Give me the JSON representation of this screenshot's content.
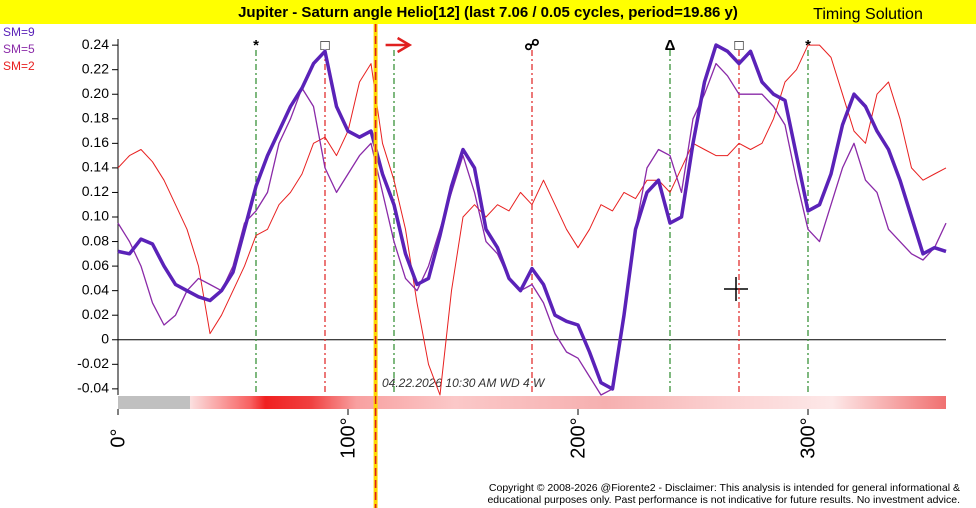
{
  "chart_data": {
    "type": "line",
    "title": "Jupiter - Saturn angle Helio[12]  (last 7.06 / 0.05 cycles, period=19.86 y)",
    "brand": "Timing Solution",
    "annotation": "04.22.2026  10:30 AM WD  4 W",
    "copyright": [
      "Copyright © 2008-2026 @Fiorente2 - Disclaimer: This analysis is intended for general informational &",
      "educational purposes only. Past performance is not indicative for future results. No investment advice."
    ],
    "xlim": [
      0,
      360
    ],
    "ylim": [
      -0.045,
      0.245
    ],
    "xticks": [
      {
        "value": 0,
        "label": "0°"
      },
      {
        "value": 100,
        "label": "100°"
      },
      {
        "value": 200,
        "label": "200°"
      },
      {
        "value": 300,
        "label": "300°"
      }
    ],
    "yticks": [
      -0.04,
      -0.02,
      0,
      0.02,
      0.04,
      0.06,
      0.08,
      {
        "value": 0.1,
        "label": "0.10"
      },
      0.12,
      0.14,
      0.16,
      0.18,
      {
        "value": 0.2,
        "label": "0.20"
      },
      0.22,
      0.24
    ],
    "cursor_x": 112,
    "aspects": [
      {
        "x": 60,
        "symbol": "*",
        "color": "#2a8a2a"
      },
      {
        "x": 90,
        "symbol": "□",
        "color": "#e02020"
      },
      {
        "x": 120,
        "symbol": null,
        "color": "#2a8a2a"
      },
      {
        "x": 180,
        "symbol": "☍",
        "color": "#e02020"
      },
      {
        "x": 240,
        "symbol": "Δ",
        "color": "#2a8a2a"
      },
      {
        "x": 270,
        "symbol": "□",
        "color": "#e02020"
      },
      {
        "x": 300,
        "symbol": "*",
        "color": "#2a8a2a"
      }
    ],
    "x": [
      0,
      5,
      10,
      15,
      20,
      25,
      30,
      35,
      40,
      45,
      50,
      55,
      60,
      65,
      70,
      75,
      80,
      85,
      90,
      95,
      100,
      105,
      110,
      115,
      120,
      125,
      130,
      135,
      140,
      145,
      150,
      155,
      160,
      165,
      170,
      175,
      180,
      185,
      190,
      195,
      200,
      205,
      210,
      215,
      220,
      225,
      230,
      235,
      240,
      245,
      250,
      255,
      260,
      265,
      270,
      275,
      280,
      285,
      290,
      295,
      300,
      305,
      310,
      315,
      320,
      325,
      330,
      335,
      340,
      345,
      350,
      355,
      360
    ],
    "series": [
      {
        "name": "SM=2",
        "color": "#e82020",
        "width": 1,
        "values": [
          0.14,
          0.15,
          0.155,
          0.145,
          0.13,
          0.11,
          0.09,
          0.06,
          0.005,
          0.02,
          0.04,
          0.06,
          0.085,
          0.09,
          0.11,
          0.12,
          0.135,
          0.16,
          0.165,
          0.15,
          0.17,
          0.21,
          0.225,
          0.16,
          0.13,
          0.09,
          0.03,
          -0.02,
          -0.045,
          0.04,
          0.1,
          0.11,
          0.1,
          0.11,
          0.105,
          0.12,
          0.11,
          0.13,
          0.11,
          0.09,
          0.075,
          0.09,
          0.11,
          0.105,
          0.12,
          0.115,
          0.13,
          0.13,
          0.12,
          0.14,
          0.16,
          0.155,
          0.15,
          0.15,
          0.16,
          0.155,
          0.16,
          0.18,
          0.21,
          0.22,
          0.24,
          0.24,
          0.23,
          0.2,
          0.17,
          0.16,
          0.2,
          0.21,
          0.18,
          0.14,
          0.13,
          0.135,
          0.14
        ]
      },
      {
        "name": "SM=5",
        "color": "#8a2aa8",
        "width": 1.3,
        "values": [
          0.095,
          0.08,
          0.06,
          0.03,
          0.012,
          0.02,
          0.04,
          0.05,
          0.045,
          0.04,
          0.06,
          0.095,
          0.105,
          0.12,
          0.16,
          0.18,
          0.205,
          0.19,
          0.14,
          0.12,
          0.135,
          0.15,
          0.16,
          0.12,
          0.08,
          0.05,
          0.04,
          0.06,
          0.09,
          0.12,
          0.15,
          0.12,
          0.08,
          0.07,
          0.05,
          0.04,
          0.045,
          0.03,
          0.005,
          -0.01,
          -0.015,
          -0.03,
          -0.045,
          -0.04,
          0.02,
          0.09,
          0.14,
          0.155,
          0.15,
          0.12,
          0.18,
          0.2,
          0.225,
          0.215,
          0.2,
          0.2,
          0.2,
          0.19,
          0.175,
          0.13,
          0.09,
          0.08,
          0.11,
          0.14,
          0.16,
          0.13,
          0.12,
          0.09,
          0.08,
          0.07,
          0.065,
          0.075,
          0.095
        ]
      },
      {
        "name": "SM=9",
        "color": "#5a22b8",
        "width": 3.5,
        "values": [
          0.072,
          0.07,
          0.082,
          0.078,
          0.06,
          0.045,
          0.04,
          0.035,
          0.032,
          0.04,
          0.055,
          0.09,
          0.125,
          0.15,
          0.17,
          0.19,
          0.205,
          0.225,
          0.235,
          0.19,
          0.17,
          0.165,
          0.17,
          0.135,
          0.11,
          0.07,
          0.045,
          0.05,
          0.085,
          0.125,
          0.155,
          0.14,
          0.09,
          0.075,
          0.05,
          0.04,
          0.058,
          0.045,
          0.02,
          0.015,
          0.012,
          -0.01,
          -0.035,
          -0.04,
          0.02,
          0.09,
          0.12,
          0.13,
          0.095,
          0.1,
          0.16,
          0.21,
          0.24,
          0.235,
          0.225,
          0.235,
          0.21,
          0.2,
          0.195,
          0.15,
          0.105,
          0.11,
          0.135,
          0.175,
          0.2,
          0.19,
          0.17,
          0.155,
          0.13,
          0.1,
          0.07,
          0.075,
          0.072
        ]
      }
    ],
    "legend": "upper left"
  }
}
